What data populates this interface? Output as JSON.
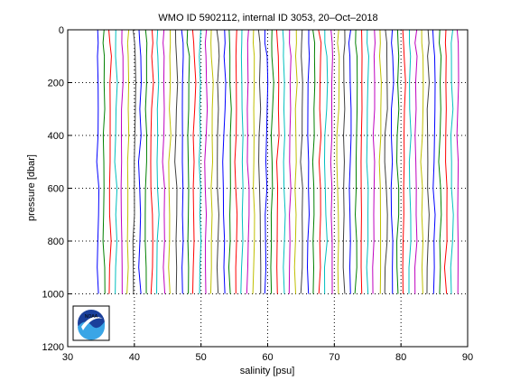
{
  "chart_data": {
    "type": "line",
    "title": "WMO ID 5902112, internal ID 3053, 20–Oct–2018",
    "xlabel": "salinity [psu]",
    "ylabel": "pressure [dbar]",
    "xlim": [
      30,
      90
    ],
    "ylim": [
      1200,
      0
    ],
    "y_reversed": true,
    "x_ticks": [
      30,
      40,
      50,
      60,
      70,
      80,
      90
    ],
    "y_ticks": [
      0,
      200,
      400,
      600,
      800,
      1000,
      1200
    ],
    "grid": "dotted",
    "profile_offset_step": 0.9,
    "series_colors": [
      "#0000ff",
      "#008000",
      "#ff0000",
      "#00bfbf",
      "#bf00bf",
      "#bfbf00",
      "#404040"
    ],
    "series": [
      {
        "x_offset_start": 34.5,
        "count": 61,
        "pressure": [
          0,
          50,
          100,
          200,
          300,
          400,
          500,
          600,
          700,
          800,
          900,
          1000
        ],
        "salinity_base": [
          0.0,
          0.05,
          0.1,
          0.15,
          0.1,
          0.05,
          0.0,
          0.05,
          0.1,
          0.05,
          0.0,
          0.02
        ]
      }
    ],
    "logo": {
      "name": "noaa-logo",
      "text": "NOAA"
    }
  }
}
